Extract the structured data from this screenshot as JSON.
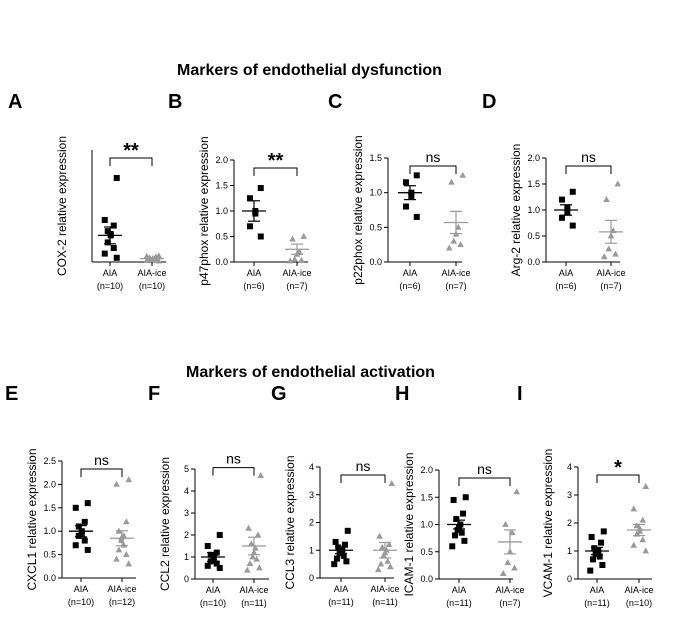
{
  "sections": [
    {
      "title": "Markers of endothelial dysfunction"
    },
    {
      "title": "Markers of endothelial activation"
    }
  ],
  "colors": {
    "aia": "#000000",
    "aia_ice": "#9a9a9a",
    "axis": "#000000"
  },
  "chart_data": [
    {
      "panel": "A",
      "type": "scatter",
      "title": "",
      "ylabel": "COX-2 relative expression",
      "ylim": [
        0,
        4
      ],
      "yticks": [],
      "categories": [
        "AIA",
        "AIA-ice"
      ],
      "ns": [
        "(n=10)",
        "(n=10)"
      ],
      "significance": "**",
      "series": [
        {
          "name": "AIA",
          "marker": "square",
          "mean": 0.95,
          "sem": 0.3,
          "values": [
            3.0,
            1.5,
            1.3,
            1.1,
            1.0,
            0.95,
            0.7,
            0.5,
            0.3,
            0.15
          ]
        },
        {
          "name": "AIA-ice",
          "marker": "triangle",
          "mean": 0.12,
          "sem": 0.03,
          "values": [
            0.22,
            0.2,
            0.18,
            0.15,
            0.12,
            0.1,
            0.08,
            0.06,
            0.05,
            0.03
          ]
        }
      ]
    },
    {
      "panel": "B",
      "type": "scatter",
      "title": "",
      "ylabel": "p47phox relative expression",
      "ylim": [
        0,
        2.0
      ],
      "yticks": [
        "0.0",
        "0.5",
        "1.0",
        "1.5",
        "2.0"
      ],
      "categories": [
        "AIA",
        "AIA-ice"
      ],
      "ns": [
        "(n=6)",
        "(n=7)"
      ],
      "significance": "**",
      "series": [
        {
          "name": "AIA",
          "marker": "square",
          "mean": 1.0,
          "sem": 0.2,
          "values": [
            1.45,
            1.25,
            1.0,
            0.95,
            0.7,
            0.5
          ]
        },
        {
          "name": "AIA-ice",
          "marker": "triangle",
          "mean": 0.25,
          "sem": 0.1,
          "values": [
            0.5,
            0.45,
            0.2,
            0.15,
            0.05,
            0.03,
            0.02
          ]
        }
      ]
    },
    {
      "panel": "C",
      "type": "scatter",
      "title": "",
      "ylabel": "p22phox relative expression",
      "ylim": [
        0,
        1.5
      ],
      "yticks": [
        "0.0",
        "0.5",
        "1.0",
        "1.5"
      ],
      "categories": [
        "AIA",
        "AIA-ice"
      ],
      "ns": [
        "(n=6)",
        "(n=7)"
      ],
      "significance": "ns",
      "series": [
        {
          "name": "AIA",
          "marker": "square",
          "mean": 1.0,
          "sem": 0.1,
          "values": [
            1.25,
            1.15,
            1.0,
            0.95,
            0.8,
            0.65
          ]
        },
        {
          "name": "AIA-ice",
          "marker": "triangle",
          "mean": 0.57,
          "sem": 0.16,
          "values": [
            1.25,
            1.15,
            0.5,
            0.4,
            0.3,
            0.25,
            0.2
          ]
        }
      ]
    },
    {
      "panel": "D",
      "type": "scatter",
      "title": "",
      "ylabel": "Arg-2 relative expression",
      "ylim": [
        0,
        2.0
      ],
      "yticks": [
        "0.0",
        "0.5",
        "1.0",
        "1.5",
        "2.0"
      ],
      "categories": [
        "AIA",
        "AIA-ice"
      ],
      "ns": [
        "(n=6)",
        "(n=7)"
      ],
      "significance": "ns",
      "series": [
        {
          "name": "AIA",
          "marker": "square",
          "mean": 1.0,
          "sem": 0.1,
          "values": [
            1.35,
            1.2,
            1.05,
            0.95,
            0.85,
            0.7
          ]
        },
        {
          "name": "AIA-ice",
          "marker": "triangle",
          "mean": 0.58,
          "sem": 0.22,
          "values": [
            1.5,
            1.2,
            0.6,
            0.5,
            0.25,
            0.15,
            0.1
          ]
        }
      ]
    },
    {
      "panel": "E",
      "type": "scatter",
      "title": "",
      "ylabel": "CXCL1 relative expression",
      "ylim": [
        0,
        2.5
      ],
      "yticks": [
        "0.0",
        "0.5",
        "1.0",
        "1.5",
        "2.0",
        "2.5"
      ],
      "categories": [
        "AIA",
        "AIA-ice"
      ],
      "ns": [
        "(n=10)",
        "(n=12)"
      ],
      "significance": "ns",
      "series": [
        {
          "name": "AIA",
          "marker": "square",
          "mean": 1.0,
          "sem": 0.12,
          "values": [
            1.6,
            1.5,
            1.2,
            1.1,
            1.0,
            0.95,
            0.9,
            0.8,
            0.7,
            0.6
          ]
        },
        {
          "name": "AIA-ice",
          "marker": "triangle",
          "mean": 0.85,
          "sem": 0.16,
          "values": [
            2.1,
            2.0,
            1.2,
            1.0,
            0.9,
            0.85,
            0.8,
            0.7,
            0.6,
            0.5,
            0.4,
            0.3
          ]
        }
      ]
    },
    {
      "panel": "F",
      "type": "scatter",
      "title": "",
      "ylabel": "CCL2 relative expression",
      "ylim": [
        0,
        5
      ],
      "yticks": [
        "0",
        "1",
        "2",
        "3",
        "4",
        "5"
      ],
      "categories": [
        "AIA",
        "AIA-ice"
      ],
      "ns": [
        "(n=10)",
        "(n=11)"
      ],
      "significance": "ns",
      "series": [
        {
          "name": "AIA",
          "marker": "square",
          "mean": 1.0,
          "sem": 0.2,
          "values": [
            2.0,
            1.5,
            1.2,
            1.1,
            1.0,
            0.95,
            0.8,
            0.7,
            0.6,
            0.5
          ]
        },
        {
          "name": "AIA-ice",
          "marker": "triangle",
          "mean": 1.5,
          "sem": 0.4,
          "values": [
            4.7,
            2.3,
            2.0,
            1.6,
            1.4,
            1.2,
            1.0,
            0.9,
            0.7,
            0.5,
            0.4
          ]
        }
      ]
    },
    {
      "panel": "G",
      "type": "scatter",
      "title": "",
      "ylabel": "CCL3 relative expression",
      "ylim": [
        0,
        4
      ],
      "yticks": [
        "0",
        "1",
        "2",
        "3",
        "4"
      ],
      "categories": [
        "AIA",
        "AIA-ice"
      ],
      "ns": [
        "(n=11)",
        "(n=11)"
      ],
      "significance": "ns",
      "series": [
        {
          "name": "AIA",
          "marker": "square",
          "mean": 1.0,
          "sem": 0.12,
          "values": [
            1.7,
            1.3,
            1.2,
            1.1,
            1.0,
            0.95,
            0.9,
            0.8,
            0.7,
            0.6,
            0.5
          ]
        },
        {
          "name": "AIA-ice",
          "marker": "triangle",
          "mean": 1.0,
          "sem": 0.28,
          "values": [
            3.4,
            1.5,
            1.2,
            1.1,
            1.0,
            0.9,
            0.8,
            0.6,
            0.5,
            0.4,
            0.3
          ]
        }
      ]
    },
    {
      "panel": "H",
      "type": "scatter",
      "title": "",
      "ylabel": "ICAM-1 relative expression",
      "ylim": [
        0,
        2.0
      ],
      "yticks": [
        "0.0",
        "0.5",
        "1.0",
        "1.5",
        "2.0"
      ],
      "categories": [
        "AIA",
        "AIA-ice"
      ],
      "ns": [
        "(n=11)",
        "(n=7)"
      ],
      "significance": "ns",
      "series": [
        {
          "name": "AIA",
          "marker": "square",
          "mean": 1.0,
          "sem": 0.08,
          "values": [
            1.5,
            1.45,
            1.2,
            1.1,
            1.0,
            0.95,
            0.9,
            0.85,
            0.8,
            0.7,
            0.6
          ]
        },
        {
          "name": "AIA-ice",
          "marker": "triangle",
          "mean": 0.68,
          "sem": 0.22,
          "values": [
            1.6,
            1.0,
            0.85,
            0.5,
            0.3,
            0.2,
            0.1
          ]
        }
      ]
    },
    {
      "panel": "I",
      "type": "scatter",
      "title": "",
      "ylabel": "VCAM-1 relative expression",
      "ylim": [
        0,
        4
      ],
      "yticks": [
        "0",
        "1",
        "2",
        "3",
        "4"
      ],
      "categories": [
        "AIA",
        "AIA-ice"
      ],
      "ns": [
        "(n=11)",
        "(n=10)"
      ],
      "significance": "*",
      "series": [
        {
          "name": "AIA",
          "marker": "square",
          "mean": 1.0,
          "sem": 0.13,
          "values": [
            1.7,
            1.5,
            1.3,
            1.1,
            1.0,
            0.95,
            0.9,
            0.8,
            0.7,
            0.5,
            0.3
          ]
        },
        {
          "name": "AIA-ice",
          "marker": "triangle",
          "mean": 1.75,
          "sem": 0.2,
          "values": [
            3.3,
            2.5,
            2.1,
            1.9,
            1.8,
            1.7,
            1.6,
            1.4,
            1.2,
            1.0
          ]
        }
      ]
    }
  ]
}
